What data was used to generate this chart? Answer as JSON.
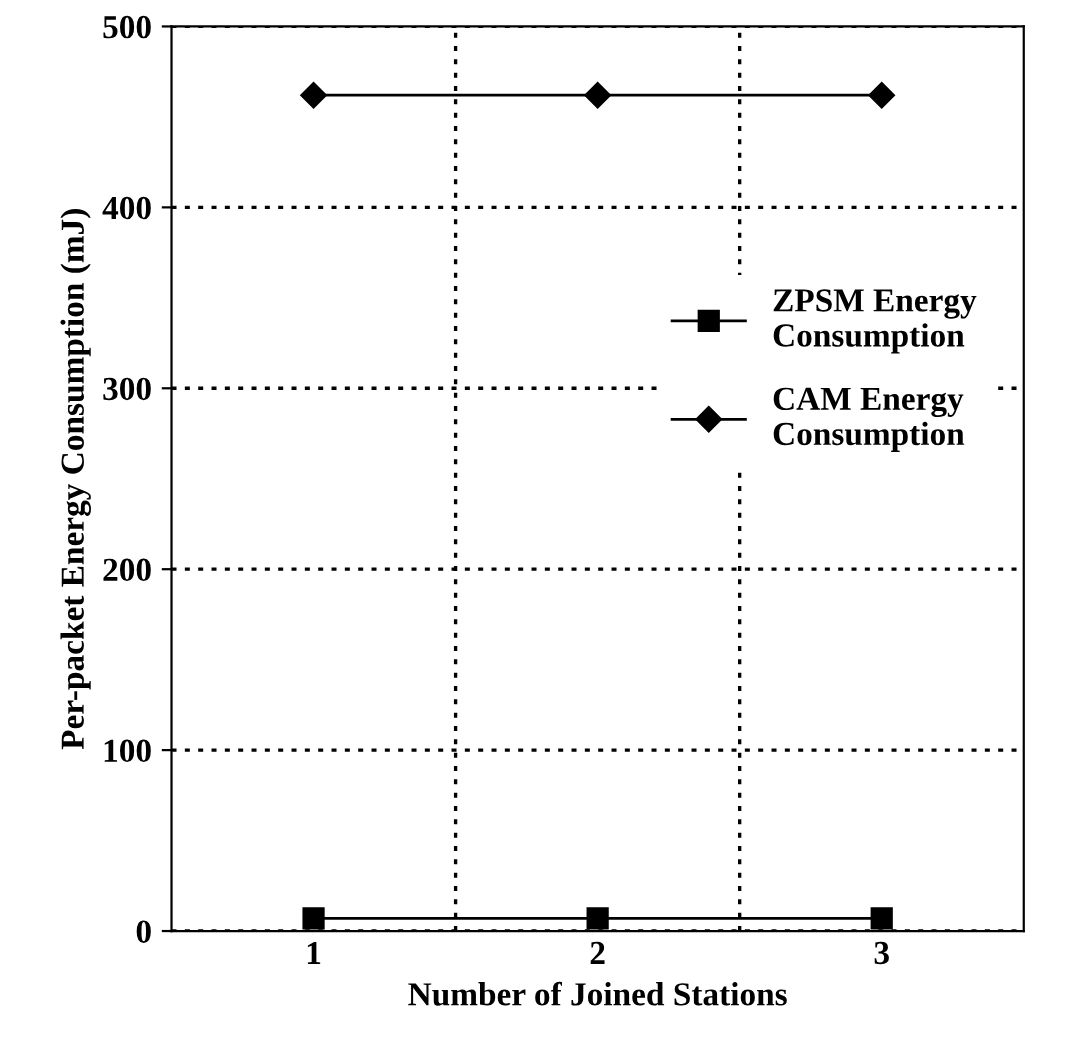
{
  "chart_data": {
    "type": "line",
    "xlabel": "Number of Joined Stations",
    "ylabel": "Per-packet Energy Consumption (mJ)",
    "categories": [
      "1",
      "2",
      "3"
    ],
    "series": [
      {
        "name": "ZPSM Energy Consumption",
        "color": "#000000",
        "marker": "square",
        "values": [
          7,
          7,
          7
        ]
      },
      {
        "name": "CAM Energy Consumption",
        "color": "#000000",
        "marker": "diamond",
        "values": [
          462,
          462,
          462
        ]
      }
    ],
    "ylim": [
      0,
      500
    ],
    "yticks": [
      0,
      100,
      200,
      300,
      400,
      500
    ],
    "grid": true,
    "legend": "right",
    "line_style": "solid"
  }
}
